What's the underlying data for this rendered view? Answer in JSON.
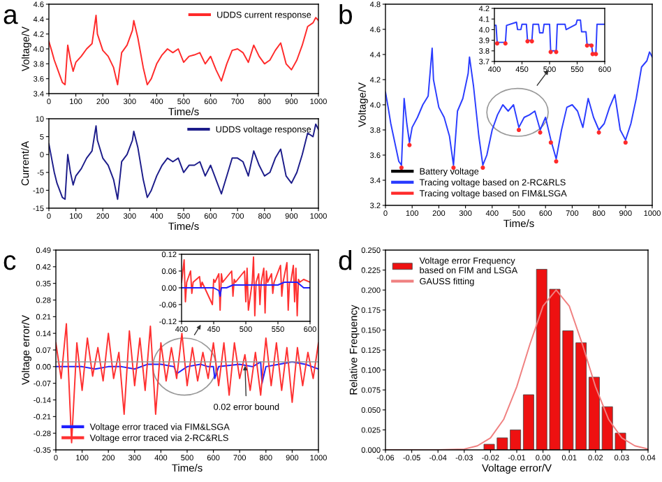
{
  "chart_data": [
    {
      "type": "line",
      "title": "a",
      "xlabel": "Time/s",
      "ylabel": "Voltage/V",
      "xlim": [
        0,
        1000
      ],
      "xticks": [
        0,
        100,
        200,
        300,
        400,
        500,
        600,
        700,
        800,
        900,
        1000
      ],
      "ylim": [
        3.4,
        4.6
      ],
      "yticks": [
        3.4,
        3.6,
        3.8,
        {
          "value": 4.0,
          "label": "4.0"
        },
        4.2,
        4.4,
        4.6
      ],
      "legend": "top right",
      "x": [
        0,
        10,
        20,
        30,
        40,
        50,
        60,
        70,
        80,
        90,
        100,
        120,
        140,
        160,
        175,
        180,
        200,
        220,
        240,
        255,
        270,
        290,
        310,
        315,
        330,
        350,
        365,
        380,
        400,
        420,
        440,
        460,
        480,
        500,
        520,
        540,
        560,
        580,
        600,
        620,
        640,
        660,
        680,
        700,
        720,
        740,
        760,
        780,
        800,
        820,
        840,
        860,
        880,
        900,
        920,
        940,
        960,
        980,
        990,
        1000
      ],
      "series": [
        {
          "name": "UDDS current response",
          "color": "#ff2a2a",
          "values": [
            4.1,
            3.98,
            3.85,
            3.75,
            3.65,
            3.55,
            3.52,
            4.05,
            3.85,
            3.7,
            3.82,
            3.9,
            4.0,
            4.07,
            4.45,
            4.2,
            3.98,
            3.9,
            3.75,
            3.52,
            3.95,
            4.05,
            4.25,
            4.38,
            4.15,
            3.75,
            3.52,
            3.6,
            3.8,
            3.92,
            4.0,
            3.95,
            4.0,
            3.82,
            3.9,
            3.92,
            3.95,
            3.8,
            3.9,
            3.72,
            3.57,
            3.8,
            3.98,
            4.0,
            3.95,
            3.82,
            4.05,
            3.9,
            3.8,
            3.85,
            3.98,
            4.08,
            3.8,
            3.72,
            3.85,
            4.05,
            4.3,
            4.35,
            4.42,
            4.38
          ]
        }
      ]
    },
    {
      "type": "line",
      "xlabel": "Time/s",
      "ylabel": "Current/A",
      "xlim": [
        0,
        1000
      ],
      "xticks": [
        0,
        100,
        200,
        300,
        400,
        500,
        600,
        700,
        800,
        900,
        1000
      ],
      "ylim": [
        -15,
        10
      ],
      "yticks": [
        -15,
        -10,
        -5,
        0,
        5,
        10
      ],
      "legend": "top right",
      "x": [
        0,
        10,
        20,
        30,
        40,
        50,
        60,
        70,
        80,
        90,
        100,
        120,
        140,
        160,
        175,
        180,
        200,
        220,
        240,
        255,
        270,
        290,
        310,
        315,
        330,
        350,
        365,
        380,
        400,
        420,
        440,
        460,
        480,
        500,
        520,
        540,
        560,
        580,
        600,
        620,
        640,
        660,
        680,
        700,
        720,
        740,
        760,
        780,
        800,
        820,
        840,
        860,
        880,
        900,
        920,
        940,
        960,
        980,
        990,
        1000
      ],
      "series": [
        {
          "name": "UDDS voltage response",
          "color": "#1c1c8a",
          "values": [
            3,
            -1,
            -5,
            -8,
            -10,
            -12,
            -12.5,
            0,
            -5,
            -8.5,
            -6,
            -4,
            -1,
            1,
            8,
            4,
            -1,
            -3,
            -7,
            -12.5,
            -2,
            0,
            4,
            6.5,
            2,
            -7,
            -12,
            -10,
            -6,
            -3,
            -1,
            -2,
            -1,
            -5,
            -3,
            -3,
            -2,
            -6,
            -3,
            -7,
            -11,
            -6,
            -1,
            -1,
            -2,
            -6,
            1,
            -3,
            -6,
            -5,
            -1,
            1.5,
            -6,
            -8,
            -5,
            0,
            6,
            5,
            8.5,
            7
          ]
        }
      ]
    },
    {
      "type": "line",
      "title": "b",
      "xlabel": "Time/s",
      "ylabel": "Voltage/V",
      "xlim": [
        0,
        1000
      ],
      "xticks": [
        0,
        100,
        200,
        300,
        400,
        500,
        600,
        700,
        800,
        900,
        1000
      ],
      "ylim": [
        3.2,
        4.8
      ],
      "yticks": [
        3.2,
        3.4,
        3.6,
        3.8,
        {
          "value": 4.0,
          "label": "4.0"
        },
        4.2,
        4.4,
        4.6,
        4.8
      ],
      "legend": "bottom left",
      "x": [
        0,
        10,
        20,
        30,
        40,
        50,
        60,
        70,
        80,
        90,
        100,
        120,
        140,
        160,
        175,
        180,
        200,
        220,
        240,
        255,
        270,
        290,
        310,
        315,
        330,
        350,
        365,
        380,
        400,
        420,
        440,
        460,
        480,
        500,
        520,
        540,
        560,
        580,
        600,
        620,
        640,
        660,
        680,
        700,
        720,
        740,
        760,
        780,
        800,
        820,
        840,
        860,
        880,
        900,
        920,
        940,
        960,
        980,
        990,
        1000
      ],
      "series": [
        {
          "name": "Battery voltage",
          "color": "#000000",
          "values": [
            null,
            null,
            null,
            null,
            null,
            null,
            null,
            null,
            null,
            null,
            null,
            null,
            null,
            null,
            null,
            null,
            null,
            null,
            null,
            null,
            null,
            null,
            null,
            null,
            null,
            null,
            null,
            null,
            null,
            null,
            null,
            null,
            null,
            null,
            null,
            null,
            null,
            null,
            null,
            null,
            null,
            null,
            null,
            null,
            null,
            null,
            null,
            null,
            null,
            null,
            null,
            null,
            null,
            null,
            null,
            null,
            null,
            null,
            null,
            null
          ]
        },
        {
          "name": "Tracing voltage based on 2-RC&RLS",
          "color": "#2a3cff",
          "values": [
            4.1,
            3.98,
            3.85,
            3.75,
            3.65,
            3.55,
            3.52,
            4.05,
            3.85,
            3.7,
            3.82,
            3.9,
            4.0,
            4.07,
            4.45,
            4.2,
            3.98,
            3.9,
            3.75,
            3.52,
            3.95,
            4.05,
            4.25,
            4.38,
            4.15,
            3.75,
            3.52,
            3.6,
            3.8,
            3.92,
            4.0,
            3.95,
            4.0,
            3.82,
            3.9,
            3.92,
            3.95,
            3.8,
            3.9,
            3.72,
            3.57,
            3.8,
            3.98,
            4.0,
            3.95,
            3.82,
            4.05,
            3.9,
            3.8,
            3.85,
            3.98,
            4.08,
            3.8,
            3.72,
            3.85,
            4.05,
            4.3,
            4.35,
            4.42,
            4.38
          ]
        },
        {
          "name": "Tracing voltage based on FIM&LSGA",
          "type": "scatter",
          "marker": "circle",
          "color": "#ff2a2a",
          "values": [
            null,
            null,
            null,
            null,
            null,
            null,
            3.5,
            null,
            null,
            3.68,
            null,
            null,
            null,
            null,
            null,
            null,
            null,
            null,
            null,
            3.5,
            null,
            null,
            null,
            null,
            null,
            null,
            3.5,
            null,
            null,
            null,
            null,
            null,
            null,
            3.8,
            null,
            null,
            null,
            3.78,
            null,
            3.7,
            3.55,
            null,
            null,
            null,
            null,
            null,
            null,
            null,
            3.78,
            null,
            null,
            null,
            null,
            3.7,
            null,
            null,
            null,
            null,
            null,
            null
          ]
        }
      ]
    },
    {
      "type": "line",
      "xlim": [
        400,
        600
      ],
      "xticks": [
        400,
        450,
        500,
        550,
        600
      ],
      "ylim": [
        3.7,
        4.2
      ],
      "yticks": [
        3.7,
        3.8,
        3.9,
        {
          "value": 4.0,
          "label": "4.0"
        },
        4.1,
        4.2
      ],
      "x": [
        400,
        403,
        405,
        420,
        422,
        440,
        442,
        448,
        450,
        458,
        460,
        468,
        470,
        480,
        482,
        488,
        490,
        500,
        502,
        512,
        514,
        528,
        530,
        548,
        550,
        556,
        558,
        566,
        568,
        576,
        578,
        584,
        586,
        600
      ],
      "series": [
        {
          "color": "#2a3cff",
          "values": [
            4.04,
            4.04,
            3.88,
            3.88,
            4.04,
            4.07,
            4.0,
            4.0,
            4.05,
            4.05,
            3.9,
            3.9,
            4.05,
            4.05,
            3.97,
            3.97,
            4.05,
            4.05,
            3.8,
            3.8,
            4.05,
            4.05,
            4.0,
            4.05,
            4.09,
            4.09,
            3.98,
            3.98,
            3.86,
            3.86,
            3.78,
            3.78,
            4.05,
            4.05
          ]
        },
        {
          "type": "scatter",
          "marker": "circle",
          "color": "#ff2a2a",
          "values": [
            null,
            null,
            3.87,
            3.87,
            null,
            null,
            null,
            null,
            null,
            null,
            3.89,
            3.89,
            null,
            null,
            null,
            null,
            null,
            null,
            3.79,
            3.79,
            null,
            null,
            null,
            null,
            null,
            null,
            null,
            null,
            3.85,
            3.85,
            3.77,
            3.77,
            null,
            null
          ]
        }
      ]
    },
    {
      "type": "line",
      "title": "c",
      "xlabel": "Time/s",
      "ylabel": "Voltage error/V",
      "xlim": [
        0,
        1000
      ],
      "xticks": [
        0,
        100,
        200,
        300,
        400,
        500,
        600,
        700,
        800,
        900,
        1000
      ],
      "ylim": [
        -0.35,
        0.49
      ],
      "yticks": [
        -0.35,
        -0.28,
        -0.21,
        -0.14,
        -0.07,
        {
          "value": 0,
          "label": "0.00"
        },
        0.07,
        0.14,
        0.21,
        0.28,
        0.35,
        0.42,
        0.49
      ],
      "legend": "bottom left",
      "ref_lines": [
        {
          "axis": "y",
          "value": 0.02,
          "color": "#9a9a9a"
        }
      ],
      "annotations": [
        {
          "text": "0.02 error bound",
          "x": 720,
          "y": 0.02
        }
      ],
      "series": [
        {
          "name": "Voltage error traced via FIM&LSGA",
          "color": "#2020ff",
          "x": [
            0,
            100,
            150,
            200,
            250,
            300,
            350,
            400,
            450,
            460,
            500,
            550,
            580,
            600,
            605,
            620,
            700,
            750,
            780,
            785,
            800,
            850,
            900,
            950,
            1000
          ],
          "values": [
            0.0,
            0.0,
            -0.01,
            0.0,
            0.0,
            -0.01,
            0.01,
            0.01,
            0.0,
            -0.03,
            0.0,
            0.01,
            0.0,
            0.0,
            -0.05,
            0.0,
            0.01,
            0.0,
            0.02,
            -0.07,
            0.0,
            0.01,
            0.02,
            0.01,
            -0.01
          ]
        },
        {
          "name": "Voltage error traced via 2-RC&RLS",
          "color": "#ff3030",
          "x": [
            0,
            20,
            40,
            60,
            80,
            100,
            120,
            140,
            160,
            180,
            200,
            220,
            240,
            260,
            280,
            300,
            320,
            340,
            360,
            380,
            400,
            420,
            440,
            460,
            480,
            500,
            520,
            540,
            560,
            580,
            600,
            620,
            640,
            660,
            680,
            700,
            720,
            740,
            760,
            780,
            800,
            820,
            840,
            860,
            880,
            900,
            920,
            940,
            960,
            980,
            1000
          ],
          "values": [
            0.1,
            -0.05,
            0.18,
            -0.32,
            0.1,
            -0.1,
            0.12,
            -0.04,
            0.08,
            -0.06,
            0.14,
            -0.05,
            0.06,
            -0.2,
            0.15,
            -0.08,
            0.12,
            -0.1,
            0.17,
            -0.2,
            0.1,
            -0.06,
            0.08,
            -0.05,
            0.14,
            -0.08,
            0.08,
            -0.06,
            0.06,
            -0.05,
            0.1,
            -0.08,
            0.1,
            -0.12,
            0.1,
            -0.05,
            0.05,
            -0.1,
            0.06,
            -0.12,
            0.12,
            -0.08,
            0.1,
            -0.1,
            0.08,
            -0.15,
            0.08,
            -0.08,
            0.06,
            -0.05,
            0.1
          ]
        }
      ]
    },
    {
      "type": "line",
      "xlim": [
        400,
        600
      ],
      "xticks": [
        400,
        450,
        500,
        550,
        600
      ],
      "ylim": [
        -0.12,
        0.12
      ],
      "yticks": [
        -0.12,
        -0.06,
        {
          "value": 0,
          "label": "0.00"
        },
        0.06,
        0.12
      ],
      "series": [
        {
          "color": "#ff3030",
          "x": [
            400,
            404,
            406,
            408,
            414,
            416,
            418,
            428,
            430,
            432,
            448,
            450,
            452,
            458,
            460,
            462,
            464,
            478,
            480,
            482,
            484,
            498,
            500,
            502,
            504,
            510,
            512,
            514,
            516,
            520,
            522,
            524,
            528,
            530,
            532,
            534,
            540,
            542,
            544,
            554,
            556,
            558,
            564,
            566,
            568,
            570,
            574,
            576,
            578,
            580,
            582,
            584,
            590,
            600
          ],
          "values": [
            0.02,
            0.1,
            -0.05,
            0.02,
            0.06,
            -0.02,
            0.02,
            0.04,
            0.0,
            0.02,
            -0.06,
            0.03,
            0.02,
            0.05,
            -0.08,
            0.05,
            0.02,
            0.06,
            -0.03,
            0.03,
            0.02,
            0.06,
            -0.05,
            0.07,
            -0.08,
            0.02,
            0.11,
            -0.1,
            0.02,
            0.05,
            -0.06,
            0.02,
            0.07,
            -0.09,
            0.06,
            0.02,
            0.05,
            -0.02,
            0.02,
            0.08,
            -0.03,
            0.02,
            0.09,
            -0.08,
            0.02,
            0.02,
            0.08,
            -0.05,
            0.07,
            -0.1,
            0.03,
            0.02,
            0.03,
            0.02
          ]
        },
        {
          "color": "#2020ff",
          "x": [
            400,
            410,
            420,
            430,
            440,
            450,
            458,
            460,
            462,
            470,
            480,
            500,
            520,
            540,
            550,
            560,
            580,
            590,
            600
          ],
          "values": [
            0.0,
            0.0,
            0.0,
            0.0,
            0.0,
            0.0,
            -0.01,
            -0.03,
            0.0,
            0.0,
            0.01,
            0.01,
            0.01,
            0.01,
            0.01,
            0.02,
            0.02,
            0.0,
            0.0
          ]
        }
      ]
    },
    {
      "type": "histogram",
      "title": "d",
      "xlabel": "Voltage error/V",
      "ylabel": "Relative Frequency",
      "xlim": [
        -0.06,
        0.04
      ],
      "xticks": [
        -0.06,
        -0.05,
        -0.04,
        -0.03,
        -0.02,
        -0.01,
        {
          "value": 0,
          "label": "0.00"
        },
        0.01,
        0.02,
        0.03,
        0.04
      ],
      "ylim": [
        0,
        0.25
      ],
      "yticks": [
        {
          "value": 0,
          "label": "0.000"
        },
        0.025,
        {
          "value": 0.05,
          "label": "0.050"
        },
        0.075,
        {
          "value": 0.1,
          "label": "0.100"
        },
        0.125,
        {
          "value": 0.15,
          "label": "0.150"
        },
        0.175,
        {
          "value": 0.2,
          "label": "0.200"
        },
        0.225,
        {
          "value": 0.25,
          "label": "0.250"
        }
      ],
      "legend": "top left",
      "series": [
        {
          "type": "histogram",
          "name": "Voltage error Frequency\nbased on FIM and LSGA",
          "color": "#ee1111",
          "bins": [
            -0.023,
            -0.018,
            -0.013,
            -0.008,
            -0.003,
            0.002,
            0.007,
            0.012,
            0.017,
            0.022,
            0.027,
            0.032
          ],
          "values": [
            0.007,
            0.015,
            0.025,
            0.069,
            0.226,
            0.201,
            0.149,
            0.134,
            0.091,
            0.054,
            0.021
          ]
        },
        {
          "type": "line",
          "name": "GAUSS fitting",
          "color": "#f08080",
          "x": [
            -0.06,
            -0.04,
            -0.03,
            -0.025,
            -0.02,
            -0.015,
            -0.01,
            -0.005,
            0.0,
            0.005,
            0.01,
            0.015,
            0.02,
            0.025,
            0.03,
            0.035,
            0.04
          ],
          "values": [
            0,
            0,
            0.001,
            0.005,
            0.015,
            0.038,
            0.079,
            0.132,
            0.18,
            0.2,
            0.18,
            0.132,
            0.079,
            0.038,
            0.015,
            0.005,
            0.001
          ]
        }
      ]
    }
  ]
}
